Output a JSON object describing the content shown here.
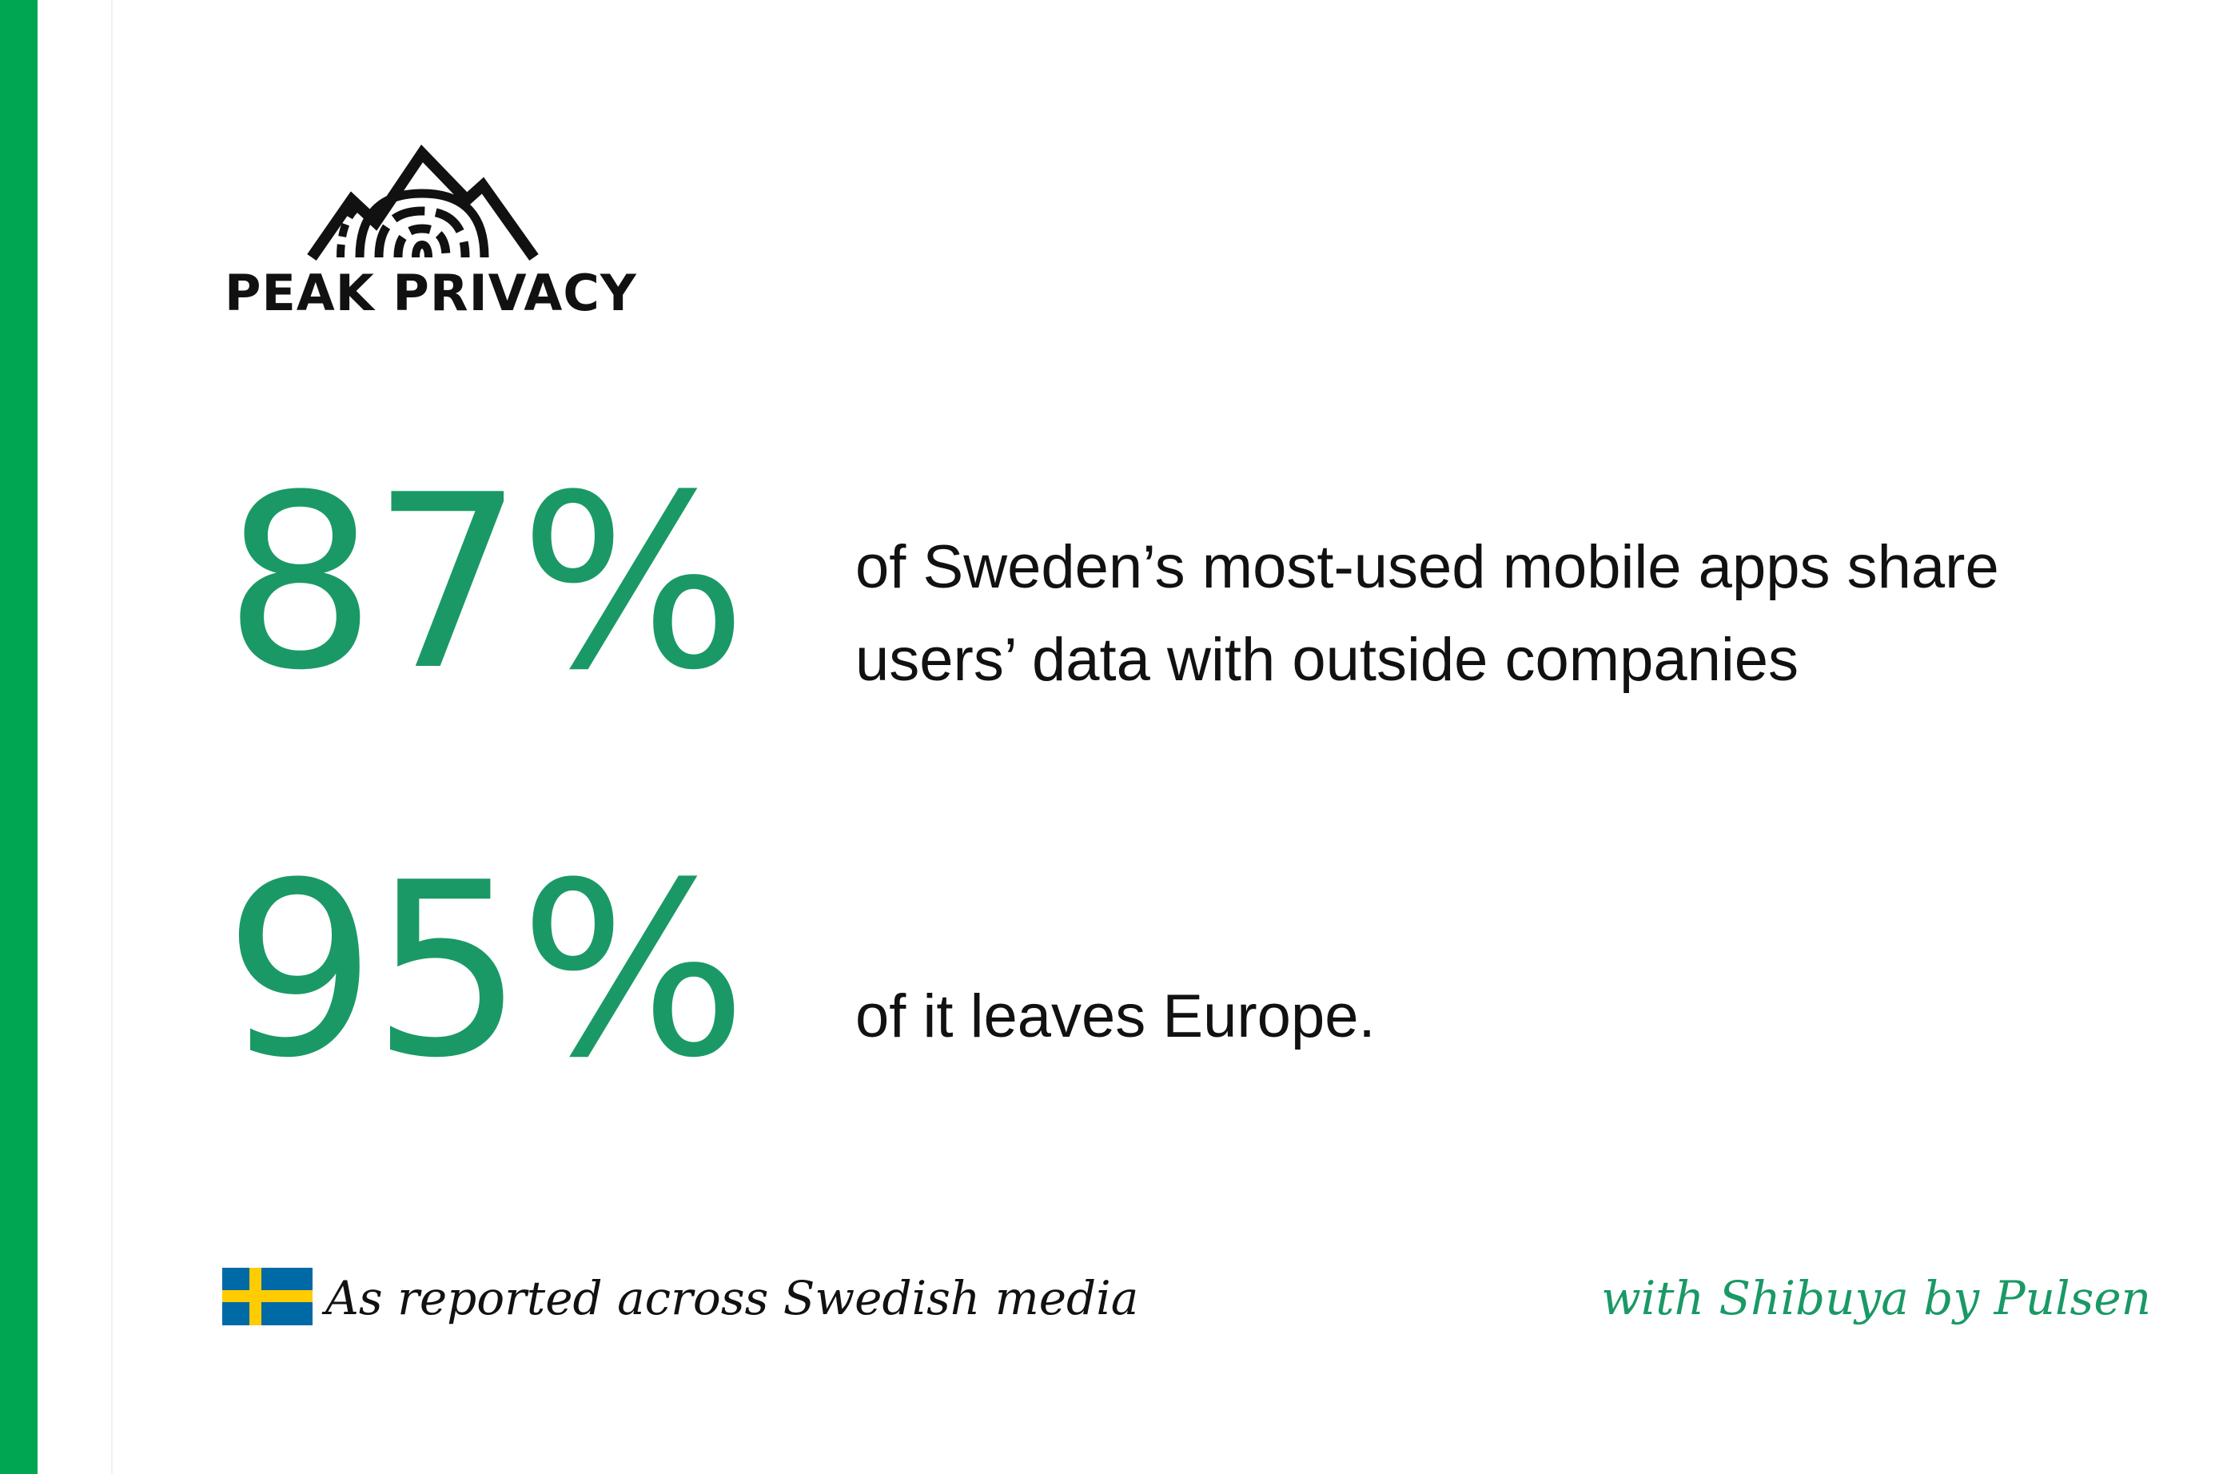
{
  "brand": {
    "logo_text": "PEAK PRIVACY",
    "logo_icon": "mountain-fingerprint-icon",
    "accent_color": "#00a651",
    "stat_color": "#1a9966"
  },
  "stats": [
    {
      "value": "87%",
      "description_lines": [
        "of Sweden’s most-used mobile apps share",
        "users’ data with outside companies"
      ]
    },
    {
      "value": "95%",
      "description_lines": [
        "of it leaves Europe."
      ]
    }
  ],
  "footer": {
    "flag_icon": "sweden-flag-icon",
    "source_text": "As reported across Swedish media",
    "partner_text": "with Shibuya by Pulsen"
  }
}
